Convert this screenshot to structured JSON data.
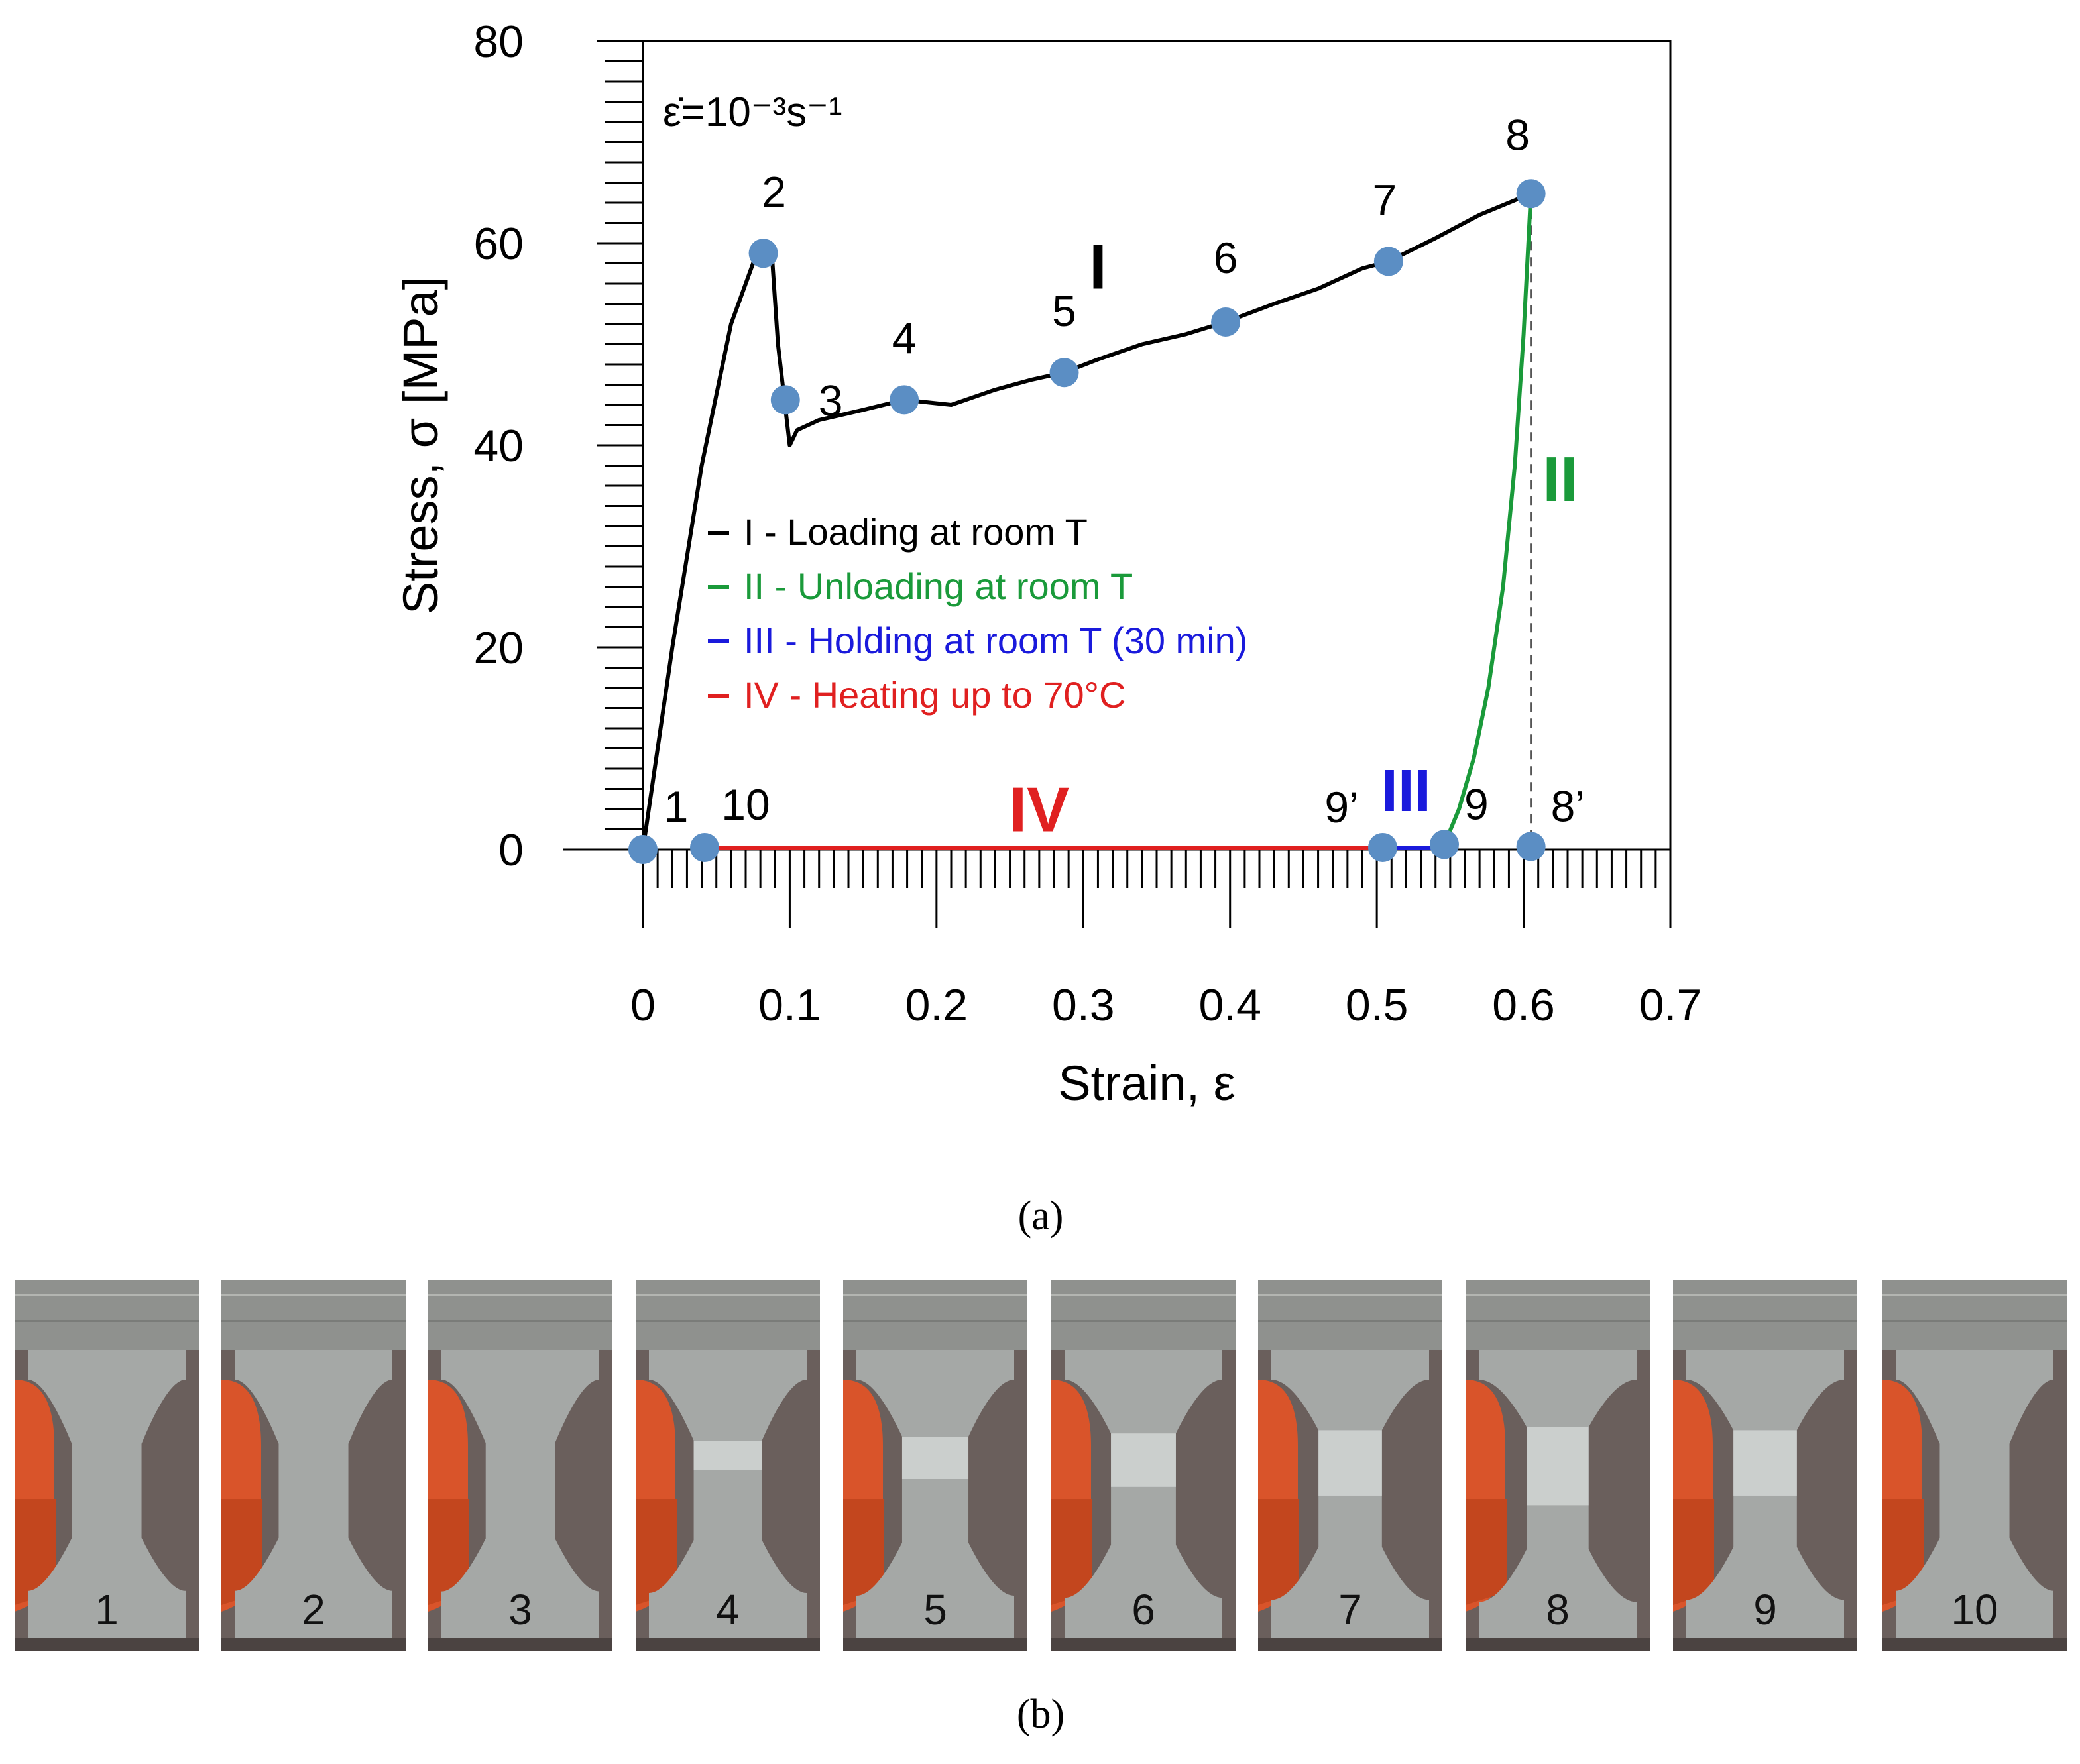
{
  "chart_data": {
    "type": "line",
    "xlabel": "Strain, ε",
    "ylabel": "Stress, σ  [MPa]",
    "xlim": [
      0,
      0.7
    ],
    "ylim": [
      0,
      80
    ],
    "x_ticks": [
      "0",
      "0.1",
      "0.2",
      "0.3",
      "0.4",
      "0.5",
      "0.6",
      "0.7"
    ],
    "y_ticks": [
      "0",
      "20",
      "40",
      "60",
      "80"
    ],
    "strain_rate_label": "ε̇=10⁻³s⁻¹",
    "legend": [
      {
        "label": "I - Loading at room T",
        "color": "#000000"
      },
      {
        "label": "II - Unloading at room T",
        "color": "#1a9a3a"
      },
      {
        "label": "III - Holding at room T (30 min)",
        "color": "#1a1adc"
      },
      {
        "label": "IV - Heating up to 70°C",
        "color": "#e02020"
      }
    ],
    "series": [
      {
        "name": "I",
        "color": "#000000",
        "x": [
          0,
          0.02,
          0.04,
          0.06,
          0.075,
          0.082,
          0.088,
          0.092,
          0.1,
          0.105,
          0.12,
          0.15,
          0.178,
          0.21,
          0.24,
          0.265,
          0.287,
          0.31,
          0.34,
          0.37,
          0.397,
          0.43,
          0.46,
          0.49,
          0.508,
          0.54,
          0.57,
          0.605
        ],
        "y": [
          0,
          20,
          38,
          52,
          58,
          59,
          58.5,
          50,
          40,
          41.5,
          42.5,
          43.5,
          44.5,
          44,
          45.5,
          46.5,
          47.2,
          48.5,
          50,
          51,
          52.2,
          54,
          55.5,
          57.5,
          58.2,
          60.5,
          62.8,
          64.9
        ]
      },
      {
        "name": "II",
        "color": "#1a9a3a",
        "x": [
          0.546,
          0.556,
          0.566,
          0.576,
          0.586,
          0.594,
          0.6,
          0.605
        ],
        "y": [
          0.5,
          4,
          9,
          16,
          26,
          38,
          51,
          64.9
        ]
      },
      {
        "name": "III",
        "color": "#1a1adc",
        "x": [
          0.504,
          0.546
        ],
        "y": [
          0.2,
          0.2
        ]
      },
      {
        "name": "IV",
        "color": "#e02020",
        "x": [
          0.042,
          0.504
        ],
        "y": [
          0.2,
          0.2
        ]
      }
    ],
    "points": [
      {
        "label": "1",
        "x": 0,
        "y": 0
      },
      {
        "label": "2",
        "x": 0.082,
        "y": 59
      },
      {
        "label": "3",
        "x": 0.097,
        "y": 44.5
      },
      {
        "label": "4",
        "x": 0.178,
        "y": 44.5
      },
      {
        "label": "5",
        "x": 0.287,
        "y": 47.2
      },
      {
        "label": "6",
        "x": 0.397,
        "y": 52.2
      },
      {
        "label": "7",
        "x": 0.508,
        "y": 58.2
      },
      {
        "label": "8",
        "x": 0.605,
        "y": 64.9
      },
      {
        "label": "8’",
        "x": 0.605,
        "y": 0.3
      },
      {
        "label": "9",
        "x": 0.546,
        "y": 0.5
      },
      {
        "label": "9’",
        "x": 0.504,
        "y": 0.2
      },
      {
        "label": "10",
        "x": 0.042,
        "y": 0.2
      }
    ],
    "region_labels": [
      {
        "label": "I",
        "color": "#000000"
      },
      {
        "label": "II",
        "color": "#1a9a3a"
      },
      {
        "label": "III",
        "color": "#1a1adc"
      },
      {
        "label": "IV",
        "color": "#e02020"
      }
    ],
    "marker_color": "#5b8ec4"
  },
  "captions": {
    "a": "(a)",
    "b": "(b)"
  },
  "photos": [
    "1",
    "2",
    "3",
    "4",
    "5",
    "6",
    "7",
    "8",
    "9",
    "10"
  ]
}
